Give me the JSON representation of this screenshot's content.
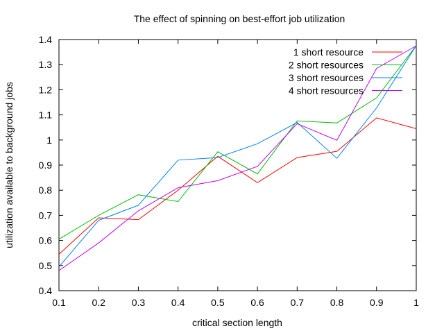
{
  "chart_data": {
    "type": "line",
    "title": "The effect of spinning on best-effort job utilization",
    "xlabel": "critical section length",
    "ylabel": "utilization available to background jobs",
    "xlim": [
      0.1,
      1.0
    ],
    "ylim": [
      0.4,
      1.4
    ],
    "x_ticks": [
      "0.1",
      "0.2",
      "0.3",
      "0.4",
      "0.5",
      "0.6",
      "0.7",
      "0.8",
      "0.9",
      "1"
    ],
    "y_ticks": [
      "0.4",
      "0.5",
      "0.6",
      "0.7",
      "0.8",
      "0.9",
      "1",
      "1.1",
      "1.2",
      "1.3",
      "1.4"
    ],
    "grid": false,
    "legend_position": "top-right",
    "x": [
      0.1,
      0.2,
      0.3,
      0.4,
      0.5,
      0.6,
      0.7,
      0.8,
      0.9,
      1.0
    ],
    "series": [
      {
        "name": "1 short resource",
        "color": "#ff0000",
        "values": [
          0.545,
          0.69,
          0.683,
          0.8,
          0.935,
          0.83,
          0.93,
          0.955,
          1.088,
          1.045
        ]
      },
      {
        "name": "2 short resources",
        "color": "#00c000",
        "values": [
          0.605,
          0.7,
          0.782,
          0.755,
          0.953,
          0.865,
          1.076,
          1.068,
          1.168,
          1.376
        ]
      },
      {
        "name": "3 short resources",
        "color": "#0080ff",
        "values": [
          0.495,
          0.68,
          0.74,
          0.92,
          0.93,
          0.985,
          1.07,
          0.927,
          1.128,
          1.376
        ]
      },
      {
        "name": "4 short resources",
        "color": "#c000ff",
        "values": [
          0.48,
          0.59,
          0.718,
          0.81,
          0.838,
          0.895,
          1.065,
          0.999,
          1.285,
          1.375
        ]
      }
    ]
  }
}
